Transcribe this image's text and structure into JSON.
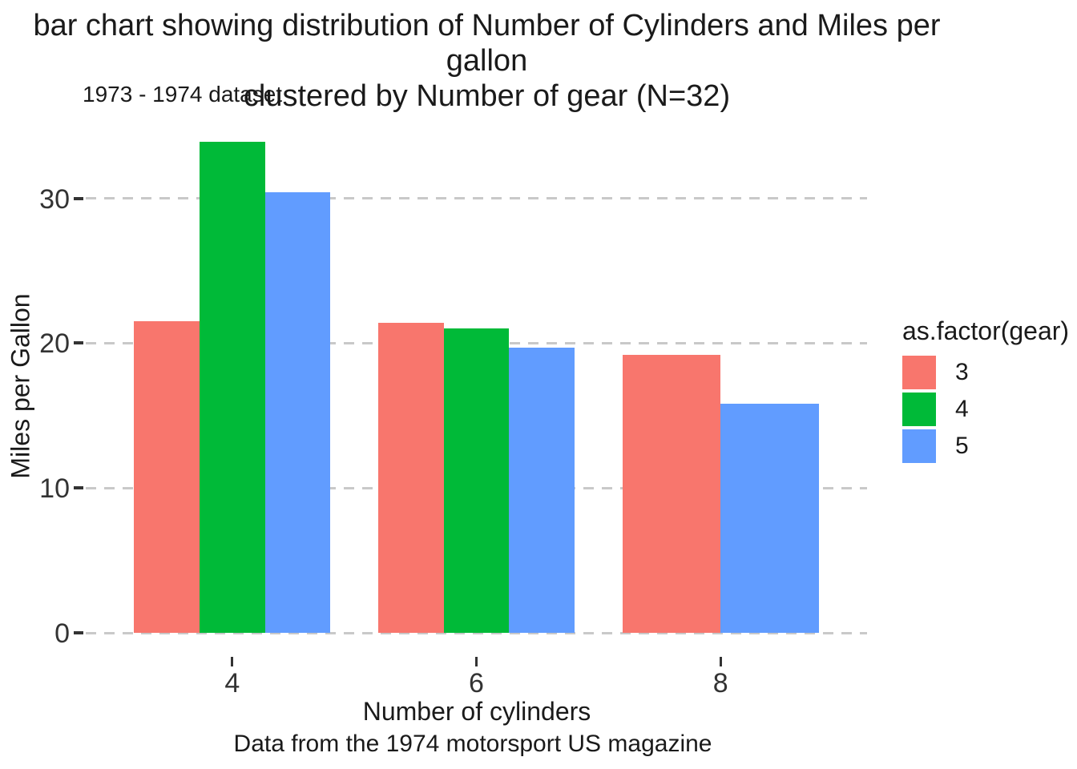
{
  "title_lines": [
    "bar chart showing distribution of Number of Cylinders and Miles per gallon",
    "clustered by Number of gear (N=32)"
  ],
  "chart_data": {
    "type": "bar",
    "grouping": "dodge",
    "title": "bar chart showing distribution of Number of Cylinders and Miles per gallon clustered by Number of gear (N=32)",
    "subtitle": "1973 - 1974 dataset",
    "caption": "Data from the 1974 motorsport US magazine",
    "xlabel": "Number of cylinders",
    "ylabel": "Miles per Gallon",
    "categories": [
      "4",
      "6",
      "8"
    ],
    "series": [
      {
        "name": "3",
        "color": "#F8766D",
        "values": [
          21.5,
          21.4,
          19.2
        ]
      },
      {
        "name": "4",
        "color": "#00BA38",
        "values": [
          33.9,
          21.0,
          null
        ]
      },
      {
        "name": "5",
        "color": "#619CFF",
        "values": [
          30.4,
          19.7,
          15.8
        ]
      }
    ],
    "yticks": [
      0,
      10,
      20,
      30
    ],
    "ylim": [
      0,
      35.4
    ],
    "grid": "horizontal dashed major lines only",
    "grid_color": "#c9c9c9",
    "axis_text_color": "#333333",
    "legend": {
      "title": "as.factor(gear)",
      "position": "right"
    }
  }
}
